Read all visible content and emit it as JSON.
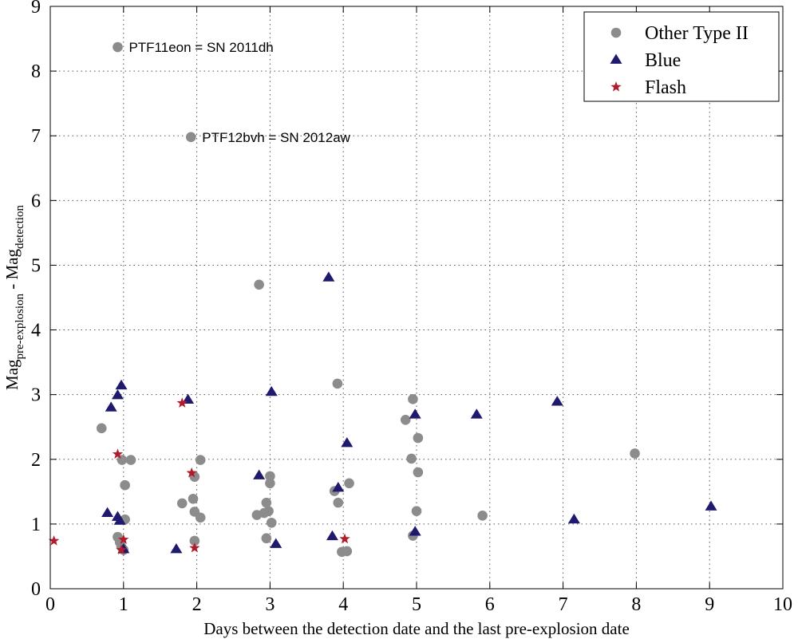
{
  "chart_data": {
    "type": "scatter",
    "title": "",
    "xlabel": "Days between the detection date and the last pre-explosion date",
    "ylabel": {
      "base1": "Mag",
      "sub1": "pre-explosion",
      "minus": " - ",
      "base2": "Mag",
      "sub2": "detection"
    },
    "xlim": [
      0,
      10
    ],
    "ylim": [
      0,
      9
    ],
    "xticks": [
      "0",
      "1",
      "2",
      "3",
      "4",
      "5",
      "6",
      "7",
      "8",
      "9",
      "10"
    ],
    "yticks": [
      "0",
      "1",
      "2",
      "3",
      "4",
      "5",
      "6",
      "7",
      "8",
      "9"
    ],
    "grid": true,
    "legend_position": "top-right",
    "colors": {
      "other": "#8c8c8c",
      "blue": "#1f1a6e",
      "flash": "#b01c2c"
    },
    "series": [
      {
        "name": "Other Type II",
        "marker": "circle",
        "points": [
          [
            0.92,
            8.37
          ],
          [
            1.92,
            6.98
          ],
          [
            2.85,
            4.7
          ],
          [
            3.92,
            3.17
          ],
          [
            0.7,
            2.48
          ],
          [
            0.98,
            1.99
          ],
          [
            1.1,
            1.99
          ],
          [
            1.02,
            1.6
          ],
          [
            1.02,
            1.07
          ],
          [
            0.92,
            0.8
          ],
          [
            0.95,
            0.72
          ],
          [
            0.97,
            0.65
          ],
          [
            1.0,
            0.6
          ],
          [
            1.97,
            1.73
          ],
          [
            2.05,
            1.99
          ],
          [
            1.8,
            1.32
          ],
          [
            1.95,
            1.39
          ],
          [
            1.97,
            1.19
          ],
          [
            2.05,
            1.1
          ],
          [
            1.97,
            0.74
          ],
          [
            3.0,
            1.74
          ],
          [
            3.0,
            1.63
          ],
          [
            2.95,
            1.33
          ],
          [
            2.92,
            1.17
          ],
          [
            2.98,
            1.2
          ],
          [
            2.82,
            1.14
          ],
          [
            3.02,
            1.02
          ],
          [
            2.95,
            0.78
          ],
          [
            3.88,
            1.51
          ],
          [
            3.93,
            1.33
          ],
          [
            4.08,
            1.63
          ],
          [
            3.98,
            0.57
          ],
          [
            4.05,
            0.58
          ],
          [
            4.95,
            2.93
          ],
          [
            4.85,
            2.61
          ],
          [
            5.02,
            2.33
          ],
          [
            4.93,
            2.01
          ],
          [
            5.02,
            1.8
          ],
          [
            5.0,
            1.2
          ],
          [
            4.95,
            0.82
          ],
          [
            5.9,
            1.13
          ],
          [
            7.98,
            2.09
          ]
        ]
      },
      {
        "name": "Blue",
        "marker": "triangle",
        "points": [
          [
            0.97,
            3.14
          ],
          [
            0.92,
            2.99
          ],
          [
            0.83,
            2.8
          ],
          [
            0.78,
            1.17
          ],
          [
            0.92,
            1.11
          ],
          [
            0.95,
            1.05
          ],
          [
            1.0,
            0.61
          ],
          [
            1.72,
            0.61
          ],
          [
            1.88,
            2.92
          ],
          [
            2.85,
            1.75
          ],
          [
            3.02,
            3.04
          ],
          [
            3.08,
            0.69
          ],
          [
            3.8,
            4.81
          ],
          [
            3.85,
            0.81
          ],
          [
            3.93,
            1.56
          ],
          [
            4.05,
            2.25
          ],
          [
            4.98,
            2.69
          ],
          [
            4.98,
            0.88
          ],
          [
            5.82,
            2.69
          ],
          [
            6.92,
            2.89
          ],
          [
            7.15,
            1.07
          ],
          [
            9.02,
            1.27
          ]
        ]
      },
      {
        "name": "Flash",
        "marker": "star",
        "points": [
          [
            0.05,
            0.74
          ],
          [
            0.92,
            2.08
          ],
          [
            1.0,
            0.76
          ],
          [
            0.97,
            0.6
          ],
          [
            1.8,
            2.87
          ],
          [
            1.93,
            1.79
          ],
          [
            1.97,
            0.63
          ],
          [
            4.02,
            0.77
          ]
        ]
      }
    ],
    "annotations": [
      {
        "text": "PTF11eon = SN 2011dh",
        "x": 0.92,
        "y": 8.37
      },
      {
        "text": "PTF12bvh = SN 2012aw",
        "x": 1.92,
        "y": 6.98
      }
    ],
    "legend": [
      "Other Type II",
      "Blue",
      "Flash"
    ]
  }
}
